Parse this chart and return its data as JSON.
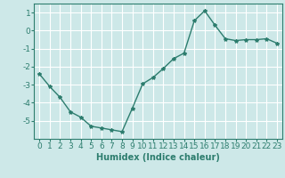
{
  "x": [
    0,
    1,
    2,
    3,
    4,
    5,
    6,
    7,
    8,
    9,
    10,
    11,
    12,
    13,
    14,
    15,
    16,
    17,
    18,
    19,
    20,
    21,
    22,
    23
  ],
  "y": [
    -2.4,
    -3.1,
    -3.7,
    -4.5,
    -4.8,
    -5.3,
    -5.4,
    -5.5,
    -5.6,
    -4.3,
    -2.95,
    -2.6,
    -2.1,
    -1.55,
    -1.25,
    0.55,
    1.1,
    0.3,
    -0.45,
    -0.55,
    -0.5,
    -0.5,
    -0.45,
    -0.7
  ],
  "line_color": "#2d7d6e",
  "marker": "*",
  "marker_size": 3,
  "bg_color": "#cde8e8",
  "grid_color": "#ffffff",
  "xlabel": "Humidex (Indice chaleur)",
  "ylim": [
    -6,
    1.5
  ],
  "xlim": [
    -0.5,
    23.5
  ],
  "yticks": [
    1,
    0,
    -1,
    -2,
    -3,
    -4,
    -5
  ],
  "xticks": [
    0,
    1,
    2,
    3,
    4,
    5,
    6,
    7,
    8,
    9,
    10,
    11,
    12,
    13,
    14,
    15,
    16,
    17,
    18,
    19,
    20,
    21,
    22,
    23
  ],
  "xlabel_fontsize": 7,
  "tick_fontsize": 6.5,
  "line_width": 1.0
}
